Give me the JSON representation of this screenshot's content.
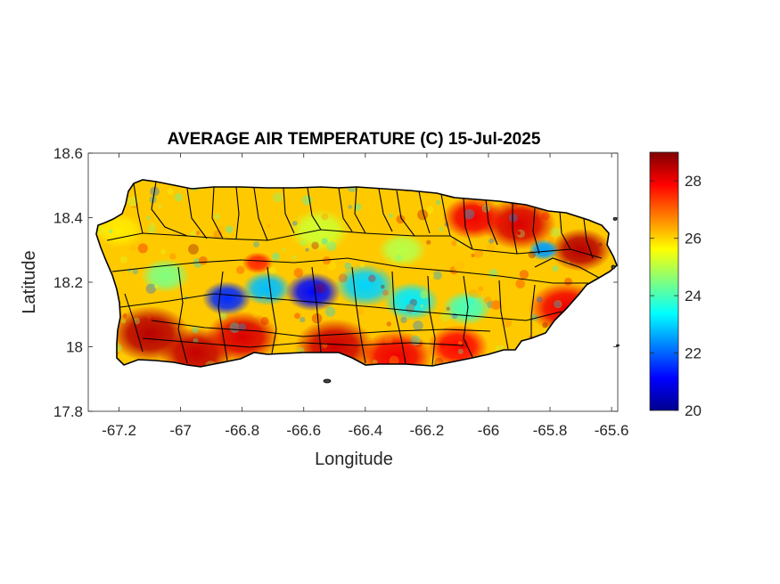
{
  "chart_data": {
    "type": "heatmap",
    "title": "AVERAGE AIR TEMPERATURE (C) 15-Jul-2025",
    "xlabel": "Longitude",
    "ylabel": "Latitude",
    "xlim": [
      -67.3,
      -65.58
    ],
    "ylim": [
      17.8,
      18.6
    ],
    "x_ticks": [
      -67.2,
      -67,
      -66.8,
      -66.6,
      -66.4,
      -66.2,
      -66,
      -65.8,
      -65.6
    ],
    "x_tick_labels": [
      "-67.2",
      "-67",
      "-66.8",
      "-66.6",
      "-66.4",
      "-66.2",
      "-66",
      "-65.8",
      "-65.6"
    ],
    "y_ticks": [
      17.8,
      18,
      18.2,
      18.4,
      18.6
    ],
    "y_tick_labels": [
      "17.8",
      "18",
      "18.2",
      "18.4",
      "18.6"
    ],
    "colorbar": {
      "colormap": "jet",
      "range": [
        20,
        29
      ],
      "ticks": [
        20,
        22,
        24,
        26,
        28
      ],
      "tick_labels": [
        "20",
        "22",
        "24",
        "26",
        "28"
      ]
    },
    "grid": false,
    "blobs": [
      {
        "lon": -67.1,
        "lat": 18.04,
        "value": 28.5,
        "rad": 0.13
      },
      {
        "lon": -66.95,
        "lat": 17.98,
        "value": 28.4,
        "rad": 0.12
      },
      {
        "lon": -66.8,
        "lat": 18.03,
        "value": 28.2,
        "rad": 0.12
      },
      {
        "lon": -66.5,
        "lat": 18.0,
        "value": 28.3,
        "rad": 0.13
      },
      {
        "lon": -66.3,
        "lat": 17.97,
        "value": 28.0,
        "rad": 0.12
      },
      {
        "lon": -66.1,
        "lat": 18.0,
        "value": 27.8,
        "rad": 0.1
      },
      {
        "lon": -65.75,
        "lat": 18.12,
        "value": 28.0,
        "rad": 0.12
      },
      {
        "lon": -65.7,
        "lat": 18.3,
        "value": 28.5,
        "rad": 0.1
      },
      {
        "lon": -65.9,
        "lat": 18.38,
        "value": 28.2,
        "rad": 0.12
      },
      {
        "lon": -66.05,
        "lat": 18.4,
        "value": 28.0,
        "rad": 0.1
      },
      {
        "lon": -66.75,
        "lat": 18.26,
        "value": 27.5,
        "rad": 0.05
      },
      {
        "lon": -67.2,
        "lat": 18.36,
        "value": 25.8,
        "rad": 0.08
      },
      {
        "lon": -66.85,
        "lat": 18.15,
        "value": 21.5,
        "rad": 0.08
      },
      {
        "lon": -66.72,
        "lat": 18.18,
        "value": 22.8,
        "rad": 0.08
      },
      {
        "lon": -66.57,
        "lat": 18.17,
        "value": 21.2,
        "rad": 0.09
      },
      {
        "lon": -66.4,
        "lat": 18.19,
        "value": 23.0,
        "rad": 0.1
      },
      {
        "lon": -66.25,
        "lat": 18.14,
        "value": 23.2,
        "rad": 0.09
      },
      {
        "lon": -66.07,
        "lat": 18.12,
        "value": 24.0,
        "rad": 0.08
      },
      {
        "lon": -65.82,
        "lat": 18.3,
        "value": 22.5,
        "rad": 0.05
      },
      {
        "lon": -66.28,
        "lat": 18.3,
        "value": 25.0,
        "rad": 0.08
      },
      {
        "lon": -66.55,
        "lat": 18.36,
        "value": 25.2,
        "rad": 0.1
      },
      {
        "lon": -67.05,
        "lat": 18.22,
        "value": 24.5,
        "rad": 0.08
      }
    ]
  },
  "colors": {
    "coastline": "#000000",
    "axes_frame": "#262626",
    "background": "#ffffff"
  }
}
